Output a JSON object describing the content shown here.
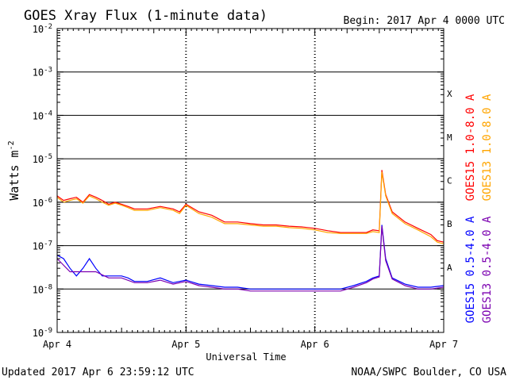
{
  "chart_data": {
    "type": "line",
    "title": "GOES Xray Flux (1-minute data)",
    "begin_label": "Begin:  2017 Apr 4 0000 UTC",
    "xlabel": "Universal Time",
    "ylabel": "Watts m",
    "ylabel_superscript": "-2",
    "x_tick_labels": [
      "Apr 4",
      "Apr 5",
      "Apr 6",
      "Apr 7"
    ],
    "xlim_days": [
      0,
      3
    ],
    "y_scale": "log",
    "ylim": [
      1e-09,
      0.01
    ],
    "y_tick_labels": [
      {
        "mantissa": "10",
        "exp": "-9"
      },
      {
        "mantissa": "10",
        "exp": "-8"
      },
      {
        "mantissa": "10",
        "exp": "-7"
      },
      {
        "mantissa": "10",
        "exp": "-6"
      },
      {
        "mantissa": "10",
        "exp": "-5"
      },
      {
        "mantissa": "10",
        "exp": "-4"
      },
      {
        "mantissa": "10",
        "exp": "-3"
      },
      {
        "mantissa": "10",
        "exp": "-2"
      }
    ],
    "flare_classes": [
      {
        "label": "A",
        "value": 1e-08
      },
      {
        "label": "B",
        "value": 1e-07
      },
      {
        "label": "C",
        "value": 1e-06
      },
      {
        "label": "M",
        "value": 1e-05
      },
      {
        "label": "X",
        "value": 0.0001
      }
    ],
    "grid": "horizontal lines at decades 1e-8 to 1e-3",
    "series": [
      {
        "name": "GOES15 1.0-8.0 A",
        "color": "#ff0000",
        "x": [
          0,
          0.05,
          0.1,
          0.15,
          0.2,
          0.25,
          0.3,
          0.35,
          0.4,
          0.45,
          0.5,
          0.55,
          0.6,
          0.7,
          0.8,
          0.9,
          0.95,
          1.0,
          1.1,
          1.2,
          1.3,
          1.4,
          1.5,
          1.6,
          1.7,
          1.8,
          1.9,
          2.0,
          2.1,
          2.2,
          2.3,
          2.4,
          2.45,
          2.5,
          2.52,
          2.55,
          2.6,
          2.7,
          2.8,
          2.9,
          2.95,
          3.0
        ],
        "values": [
          1.4e-06,
          1.1e-06,
          1.2e-06,
          1.3e-06,
          1e-06,
          1.5e-06,
          1.3e-06,
          1.1e-06,
          9e-07,
          1e-06,
          9e-07,
          8e-07,
          7e-07,
          7e-07,
          8e-07,
          7e-07,
          6e-07,
          9e-07,
          6e-07,
          5e-07,
          3.5e-07,
          3.5e-07,
          3.2e-07,
          3e-07,
          3e-07,
          2.8e-07,
          2.7e-07,
          2.5e-07,
          2.2e-07,
          2e-07,
          2e-07,
          2e-07,
          2.3e-07,
          2.2e-07,
          5.5e-06,
          1.5e-06,
          6e-07,
          3.5e-07,
          2.5e-07,
          1.8e-07,
          1.3e-07,
          1.2e-07
        ]
      },
      {
        "name": "GOES13 1.0-8.0 A",
        "color": "#ffa500",
        "x": [
          0,
          0.05,
          0.1,
          0.15,
          0.2,
          0.25,
          0.3,
          0.35,
          0.4,
          0.45,
          0.5,
          0.55,
          0.6,
          0.7,
          0.8,
          0.9,
          0.95,
          1.0,
          1.1,
          1.2,
          1.3,
          1.4,
          1.5,
          1.6,
          1.7,
          1.8,
          1.9,
          2.0,
          2.1,
          2.2,
          2.3,
          2.4,
          2.45,
          2.5,
          2.52,
          2.55,
          2.6,
          2.7,
          2.8,
          2.9,
          2.95,
          3.0
        ],
        "values": [
          1.3e-06,
          1e-06,
          1.1e-06,
          1.2e-06,
          9.5e-07,
          1.4e-06,
          1.2e-06,
          1e-06,
          8.5e-07,
          9.5e-07,
          8.5e-07,
          7.5e-07,
          6.5e-07,
          6.5e-07,
          7.5e-07,
          6.5e-07,
          5.5e-07,
          8.5e-07,
          5.5e-07,
          4.5e-07,
          3.2e-07,
          3.2e-07,
          3e-07,
          2.8e-07,
          2.8e-07,
          2.6e-07,
          2.5e-07,
          2.3e-07,
          2e-07,
          1.9e-07,
          1.9e-07,
          1.9e-07,
          2.1e-07,
          2e-07,
          5e-06,
          1.4e-06,
          5.5e-07,
          3.2e-07,
          2.3e-07,
          1.6e-07,
          1.2e-07,
          1.1e-07
        ]
      },
      {
        "name": "GOES15 0.5-4.0 A",
        "color": "#0000ff",
        "x": [
          0,
          0.05,
          0.1,
          0.15,
          0.2,
          0.25,
          0.3,
          0.35,
          0.4,
          0.45,
          0.5,
          0.55,
          0.6,
          0.7,
          0.8,
          0.9,
          1.0,
          1.1,
          1.2,
          1.3,
          1.4,
          1.5,
          1.6,
          1.7,
          1.8,
          1.9,
          2.0,
          2.1,
          2.2,
          2.3,
          2.4,
          2.45,
          2.5,
          2.52,
          2.55,
          2.6,
          2.7,
          2.8,
          2.9,
          3.0
        ],
        "values": [
          6e-08,
          5e-08,
          3e-08,
          2e-08,
          3e-08,
          5e-08,
          3e-08,
          2e-08,
          2e-08,
          2e-08,
          2e-08,
          1.8e-08,
          1.5e-08,
          1.5e-08,
          1.8e-08,
          1.4e-08,
          1.6e-08,
          1.3e-08,
          1.2e-08,
          1.1e-08,
          1.1e-08,
          1e-08,
          1e-08,
          1e-08,
          1e-08,
          1e-08,
          1e-08,
          1e-08,
          1e-08,
          1.2e-08,
          1.5e-08,
          1.8e-08,
          2e-08,
          3e-07,
          5e-08,
          1.8e-08,
          1.3e-08,
          1.1e-08,
          1.1e-08,
          1.2e-08
        ]
      },
      {
        "name": "GOES13 0.5-4.0 A",
        "color": "#7b00b0",
        "x": [
          0,
          0.1,
          0.2,
          0.3,
          0.4,
          0.5,
          0.6,
          0.7,
          0.8,
          0.9,
          1.0,
          1.1,
          1.2,
          1.3,
          1.4,
          1.5,
          1.6,
          1.7,
          1.8,
          1.9,
          2.0,
          2.1,
          2.2,
          2.3,
          2.4,
          2.45,
          2.5,
          2.52,
          2.55,
          2.6,
          2.7,
          2.8,
          2.9,
          3.0
        ],
        "values": [
          5e-08,
          2.5e-08,
          2.5e-08,
          2.5e-08,
          1.8e-08,
          1.8e-08,
          1.4e-08,
          1.4e-08,
          1.6e-08,
          1.3e-08,
          1.5e-08,
          1.2e-08,
          1.1e-08,
          1e-08,
          1e-08,
          9e-09,
          9e-09,
          9e-09,
          9e-09,
          9e-09,
          9e-09,
          9e-09,
          9e-09,
          1.1e-08,
          1.4e-08,
          1.7e-08,
          1.9e-08,
          2.8e-07,
          4.5e-08,
          1.7e-08,
          1.2e-08,
          1e-08,
          1e-08,
          1.1e-08
        ]
      }
    ]
  },
  "footer": {
    "updated": "Updated 2017 Apr  6 23:59:12 UTC",
    "credit": "NOAA/SWPC Boulder, CO USA"
  }
}
